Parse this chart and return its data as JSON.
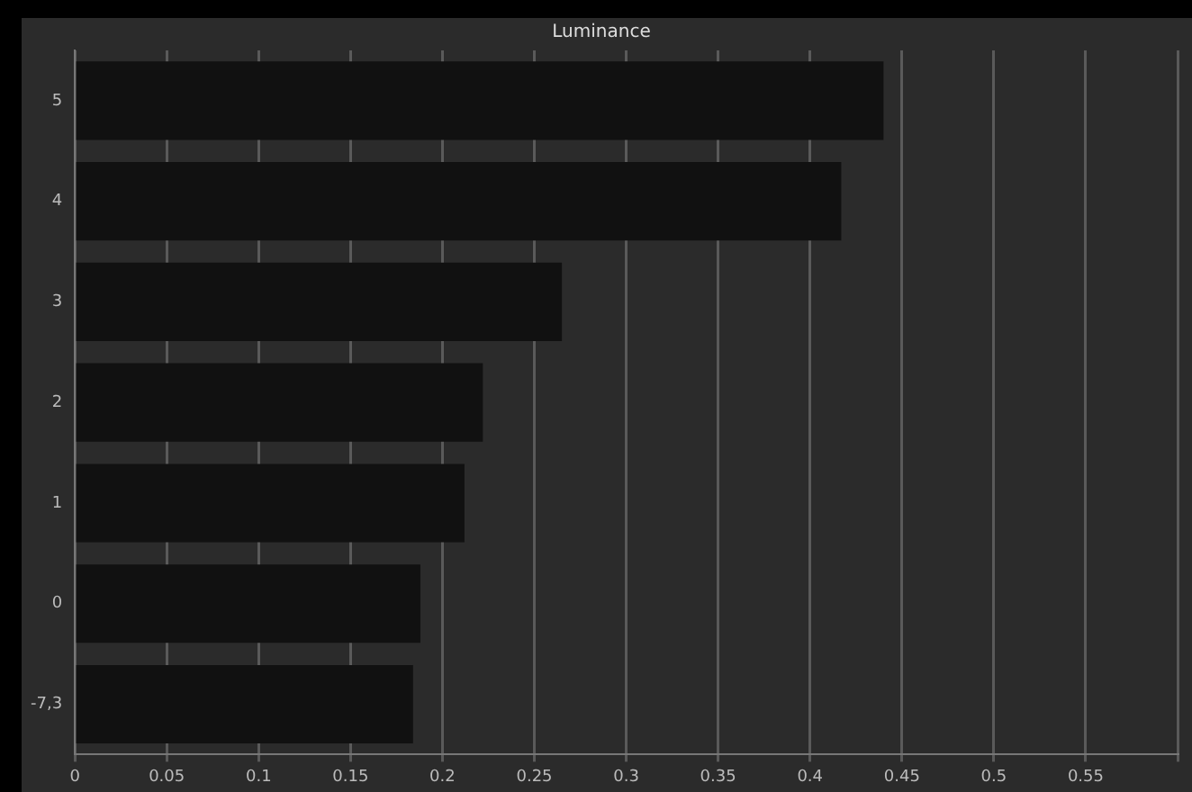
{
  "chart_data": {
    "type": "bar",
    "title": "Luminance",
    "orientation": "horizontal",
    "categories": [
      "5",
      "4",
      "3",
      "2",
      "1",
      "0",
      "-7,3"
    ],
    "values": [
      0.44,
      0.417,
      0.265,
      0.222,
      0.212,
      0.188,
      0.184
    ],
    "color": "#111111",
    "xlim": [
      0,
      0.6
    ],
    "xticks": [
      0,
      0.05,
      0.1,
      0.15,
      0.2,
      0.25,
      0.3,
      0.35,
      0.4,
      0.45,
      0.5,
      0.55,
      {
        "value": 0.6,
        "label": null
      }
    ],
    "grid": "x",
    "legend": false
  }
}
